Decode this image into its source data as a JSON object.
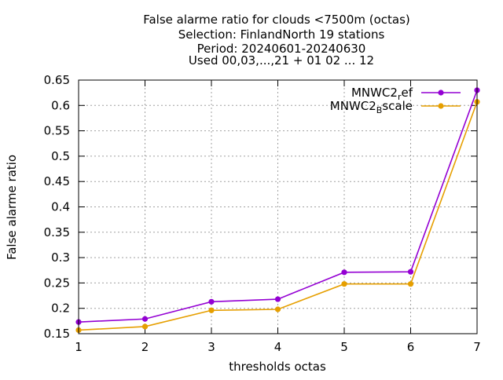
{
  "chart_data": {
    "type": "line",
    "title_lines": [
      "False alarme ratio  for clouds <7500m (octas)",
      "Selection: FinlandNorth     19 stations",
      "Period: 20240601-20240630",
      "Used 00,03,...,21 + 01 02 ... 12"
    ],
    "xlabel": "thresholds octas",
    "ylabel": "False alarme ratio",
    "x": [
      1,
      2,
      3,
      4,
      5,
      6,
      7
    ],
    "xlim": [
      1,
      7
    ],
    "ylim": [
      0.15,
      0.65
    ],
    "x_ticks": [
      "1",
      "2",
      "3",
      "4",
      "5",
      "6",
      "7"
    ],
    "y_ticks": [
      "0.15",
      "0.2",
      "0.25",
      "0.3",
      "0.35",
      "0.4",
      "0.45",
      "0.5",
      "0.55",
      "0.6",
      "0.65"
    ],
    "grid": true,
    "legend_position": "top-right",
    "series": [
      {
        "name_main": "MNWC2",
        "name_sub": "r",
        "name_tail": "ef",
        "color": "#9400d3",
        "values": [
          0.173,
          0.179,
          0.213,
          0.218,
          0.271,
          0.272,
          0.63
        ]
      },
      {
        "name_main": "MNWC2",
        "name_sub": "B",
        "name_tail": "scale",
        "color": "#e69f00",
        "values": [
          0.157,
          0.164,
          0.196,
          0.198,
          0.248,
          0.248,
          0.607
        ]
      }
    ]
  }
}
